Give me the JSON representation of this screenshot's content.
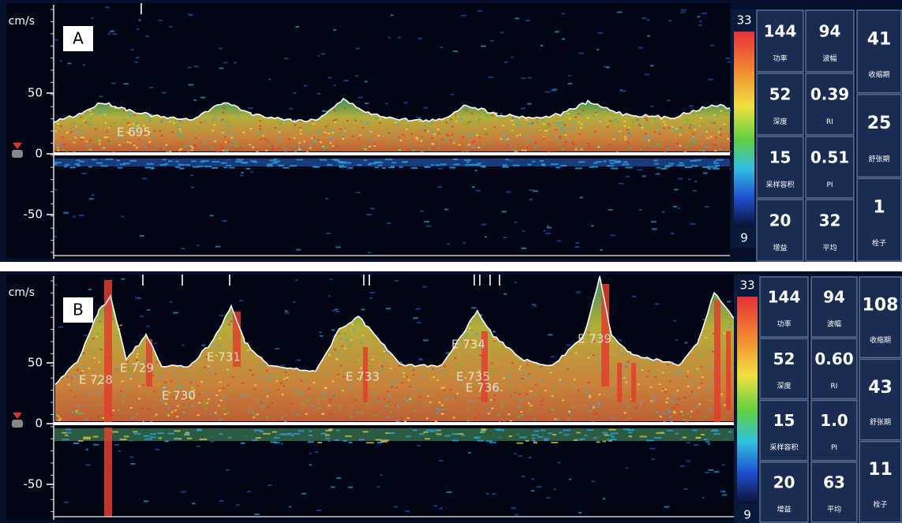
{
  "panels": [
    {
      "label": "A",
      "unit": "cm/s",
      "yticks": [
        50,
        0,
        -50
      ],
      "scale": {
        "max": 33,
        "min": 9
      },
      "events": [
        "E 695"
      ],
      "columns": [
        [
          {
            "value": "144",
            "label": "功率"
          },
          {
            "value": "52",
            "label": "深度"
          },
          {
            "value": "15",
            "label": "采样容积"
          },
          {
            "value": "20",
            "label": "增益"
          }
        ],
        [
          {
            "value": "94",
            "label": "波幅"
          },
          {
            "value": "0.39",
            "label": "RI"
          },
          {
            "value": "0.51",
            "label": "PI"
          },
          {
            "value": "32",
            "label": "平均"
          }
        ],
        [
          {
            "value": "41",
            "label": "收缩期"
          },
          {
            "value": "25",
            "label": "舒张期"
          },
          {
            "value": "1",
            "label": "栓子"
          }
        ]
      ]
    },
    {
      "label": "B",
      "unit": "cm/s",
      "yticks": [
        50,
        0,
        -50
      ],
      "scale": {
        "max": 33,
        "min": 9
      },
      "events": [
        "E 728",
        "E 729",
        "E 730",
        "E 731",
        "E 733",
        "E 734",
        "E 735",
        "E 736",
        "E 739"
      ],
      "columns": [
        [
          {
            "value": "144",
            "label": "功率"
          },
          {
            "value": "52",
            "label": "深度"
          },
          {
            "value": "15",
            "label": "采样容积"
          },
          {
            "value": "20",
            "label": "增益"
          }
        ],
        [
          {
            "value": "94",
            "label": "波幅"
          },
          {
            "value": "0.60",
            "label": "RI"
          },
          {
            "value": "1.0",
            "label": "PI"
          },
          {
            "value": "63",
            "label": "平均"
          }
        ],
        [
          {
            "value": "108",
            "label": "收缩期"
          },
          {
            "value": "43",
            "label": "舒张期"
          },
          {
            "value": "11",
            "label": "栓子"
          }
        ]
      ]
    }
  ]
}
